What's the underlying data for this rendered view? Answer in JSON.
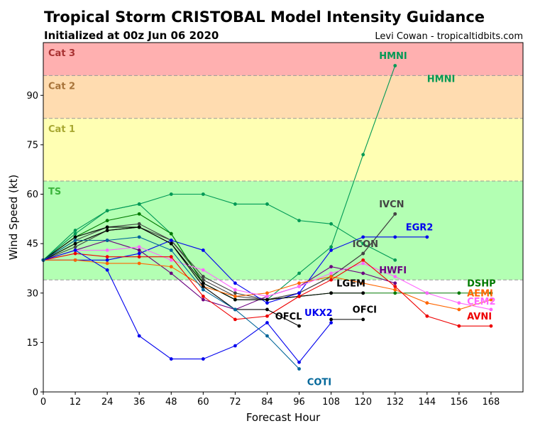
{
  "title": "Tropical Storm CRISTOBAL Model Intensity Guidance",
  "subtitle": "Initialized at 00z Jun 06 2020",
  "credit": "Levi Cowan - tropicaltidbits.com",
  "chart_data": {
    "type": "line",
    "xlabel": "Forecast Hour",
    "ylabel": "Wind Speed (kt)",
    "xlim": [
      0,
      180
    ],
    "ylim": [
      0,
      106
    ],
    "xticks": [
      0,
      12,
      24,
      36,
      48,
      60,
      72,
      84,
      96,
      108,
      120,
      132,
      144,
      156,
      168
    ],
    "yticks": [
      0,
      15,
      30,
      45,
      60,
      75,
      90
    ],
    "bands": [
      {
        "name": "TS",
        "from": 34,
        "to": 64,
        "color": "#b3ffb3",
        "label_color": "#3cb43c"
      },
      {
        "name": "Cat 1",
        "from": 64,
        "to": 83,
        "color": "#ffffb3",
        "label_color": "#a8a832"
      },
      {
        "name": "Cat 2",
        "from": 83,
        "to": 96,
        "color": "#ffdcb0",
        "label_color": "#a8743a"
      },
      {
        "name": "Cat 3",
        "from": 96,
        "to": 106,
        "color": "#ffb0b0",
        "label_color": "#a83232"
      }
    ],
    "series": [
      {
        "name": "HMNI",
        "color": "#009955",
        "x": [
          0,
          12,
          24,
          36,
          48,
          60,
          72,
          84,
          96,
          108,
          120,
          132
        ],
        "y": [
          40,
          49,
          55,
          57,
          60,
          60,
          57,
          57,
          52,
          51,
          45,
          40
        ],
        "label_pos": [
          144,
          94
        ]
      },
      {
        "name": "HMNI",
        "color": "#009955",
        "x": [
          0,
          12,
          24,
          36,
          48,
          60,
          72,
          84,
          96,
          108,
          120,
          132
        ],
        "y": [
          40,
          48,
          55,
          57,
          48,
          33,
          28,
          28,
          36,
          44,
          72,
          99
        ],
        "label_pos": [
          126,
          101
        ]
      },
      {
        "name": "IVCN",
        "color": "#444444",
        "x": [
          0,
          12,
          24,
          36,
          48,
          60,
          72,
          84,
          96,
          108,
          120,
          132
        ],
        "y": [
          40,
          44,
          49,
          50,
          46,
          34,
          29,
          28,
          30,
          35,
          42,
          54
        ],
        "label_pos": [
          126,
          56
        ]
      },
      {
        "name": "ICON",
        "color": "#444444",
        "x": [
          0,
          12,
          24,
          36,
          48,
          60,
          72,
          84,
          96,
          108,
          120,
          132
        ],
        "y": [
          40,
          46,
          50,
          51,
          46,
          35,
          30,
          28,
          30,
          35,
          42,
          54
        ],
        "label_pos": [
          116,
          44
        ]
      },
      {
        "name": "EGR2",
        "color": "#0000ee",
        "x": [
          0,
          12,
          24,
          36,
          48,
          60,
          72,
          84,
          96,
          108,
          120,
          132,
          144
        ],
        "y": [
          40,
          40,
          40,
          42,
          46,
          43,
          33,
          27,
          30,
          43,
          47,
          47,
          47
        ],
        "label_pos": [
          136,
          49
        ]
      },
      {
        "name": "HWFI",
        "color": "#6a0080",
        "x": [
          0,
          12,
          24,
          36,
          48,
          60,
          72,
          84,
          96,
          108,
          120,
          132
        ],
        "y": [
          40,
          43,
          46,
          43,
          36,
          28,
          25,
          29,
          32,
          38,
          36,
          33
        ],
        "label_pos": [
          126,
          36
        ]
      },
      {
        "name": "DSHP",
        "color": "#007a00",
        "x": [
          0,
          12,
          24,
          36,
          48,
          60,
          72,
          84,
          96,
          108,
          120,
          132,
          144,
          156,
          168
        ],
        "y": [
          40,
          47,
          52,
          54,
          48,
          33,
          28,
          28,
          29,
          30,
          30,
          30,
          30,
          30,
          30
        ],
        "label_pos": [
          159,
          32
        ]
      },
      {
        "name": "LGEM",
        "color": "#000000",
        "x": [
          0,
          12,
          24,
          36,
          48,
          60,
          72,
          84,
          96,
          108,
          120
        ],
        "y": [
          40,
          47,
          50,
          50,
          45,
          33,
          28,
          28,
          29,
          30,
          30
        ],
        "label_pos": [
          110,
          32
        ]
      },
      {
        "name": "AEMI",
        "color": "#ff6600",
        "x": [
          0,
          12,
          24,
          36,
          48,
          60,
          72,
          84,
          96,
          108,
          120,
          132,
          144,
          156,
          168
        ],
        "y": [
          40,
          40,
          39,
          39,
          38,
          32,
          29,
          30,
          33,
          35,
          33,
          31,
          27,
          25,
          28
        ],
        "label_pos": [
          159,
          29
        ]
      },
      {
        "name": "CEM2",
        "color": "#ff66ff",
        "x": [
          0,
          12,
          24,
          36,
          48,
          60,
          72,
          84,
          96,
          108,
          120,
          132,
          144,
          156,
          168
        ],
        "y": [
          40,
          43,
          43,
          44,
          40,
          37,
          31,
          29,
          32,
          36,
          39,
          35,
          30,
          27,
          25
        ],
        "label_pos": [
          159,
          26.5
        ]
      },
      {
        "name": "AVNI",
        "color": "#ee0000",
        "x": [
          0,
          12,
          24,
          36,
          48,
          60,
          72,
          84,
          96,
          108,
          120,
          132,
          144,
          156,
          168
        ],
        "y": [
          40,
          42,
          41,
          41,
          41,
          29,
          22,
          23,
          29,
          34,
          40,
          32,
          23,
          20,
          20
        ],
        "label_pos": [
          159,
          22
        ]
      },
      {
        "name": "OFCL",
        "color": "#000000",
        "x": [
          0,
          12,
          24,
          36,
          48,
          60,
          72,
          84,
          96
        ],
        "y": [
          40,
          45,
          49,
          50,
          45,
          32,
          25,
          25,
          20
        ],
        "label_pos": [
          87,
          22
        ]
      },
      {
        "name": "OFCI",
        "color": "#000000",
        "x": [
          108,
          120
        ],
        "y": [
          22,
          22
        ],
        "label_pos": [
          116,
          24
        ]
      },
      {
        "name": "UKX2",
        "color": "#0000ee",
        "x": [
          0,
          12,
          24,
          36,
          48,
          60,
          72,
          84,
          96,
          108
        ],
        "y": [
          40,
          43,
          37,
          17,
          10,
          10,
          14,
          21,
          9,
          21
        ],
        "label_pos": [
          98,
          23
        ]
      },
      {
        "name": "COTI",
        "color": "#006699",
        "x": [
          0,
          12,
          24,
          36,
          48,
          60,
          72,
          84,
          96
        ],
        "y": [
          40,
          46,
          46,
          47,
          43,
          31,
          25,
          17,
          7
        ],
        "label_pos": [
          99,
          2
        ]
      }
    ]
  }
}
